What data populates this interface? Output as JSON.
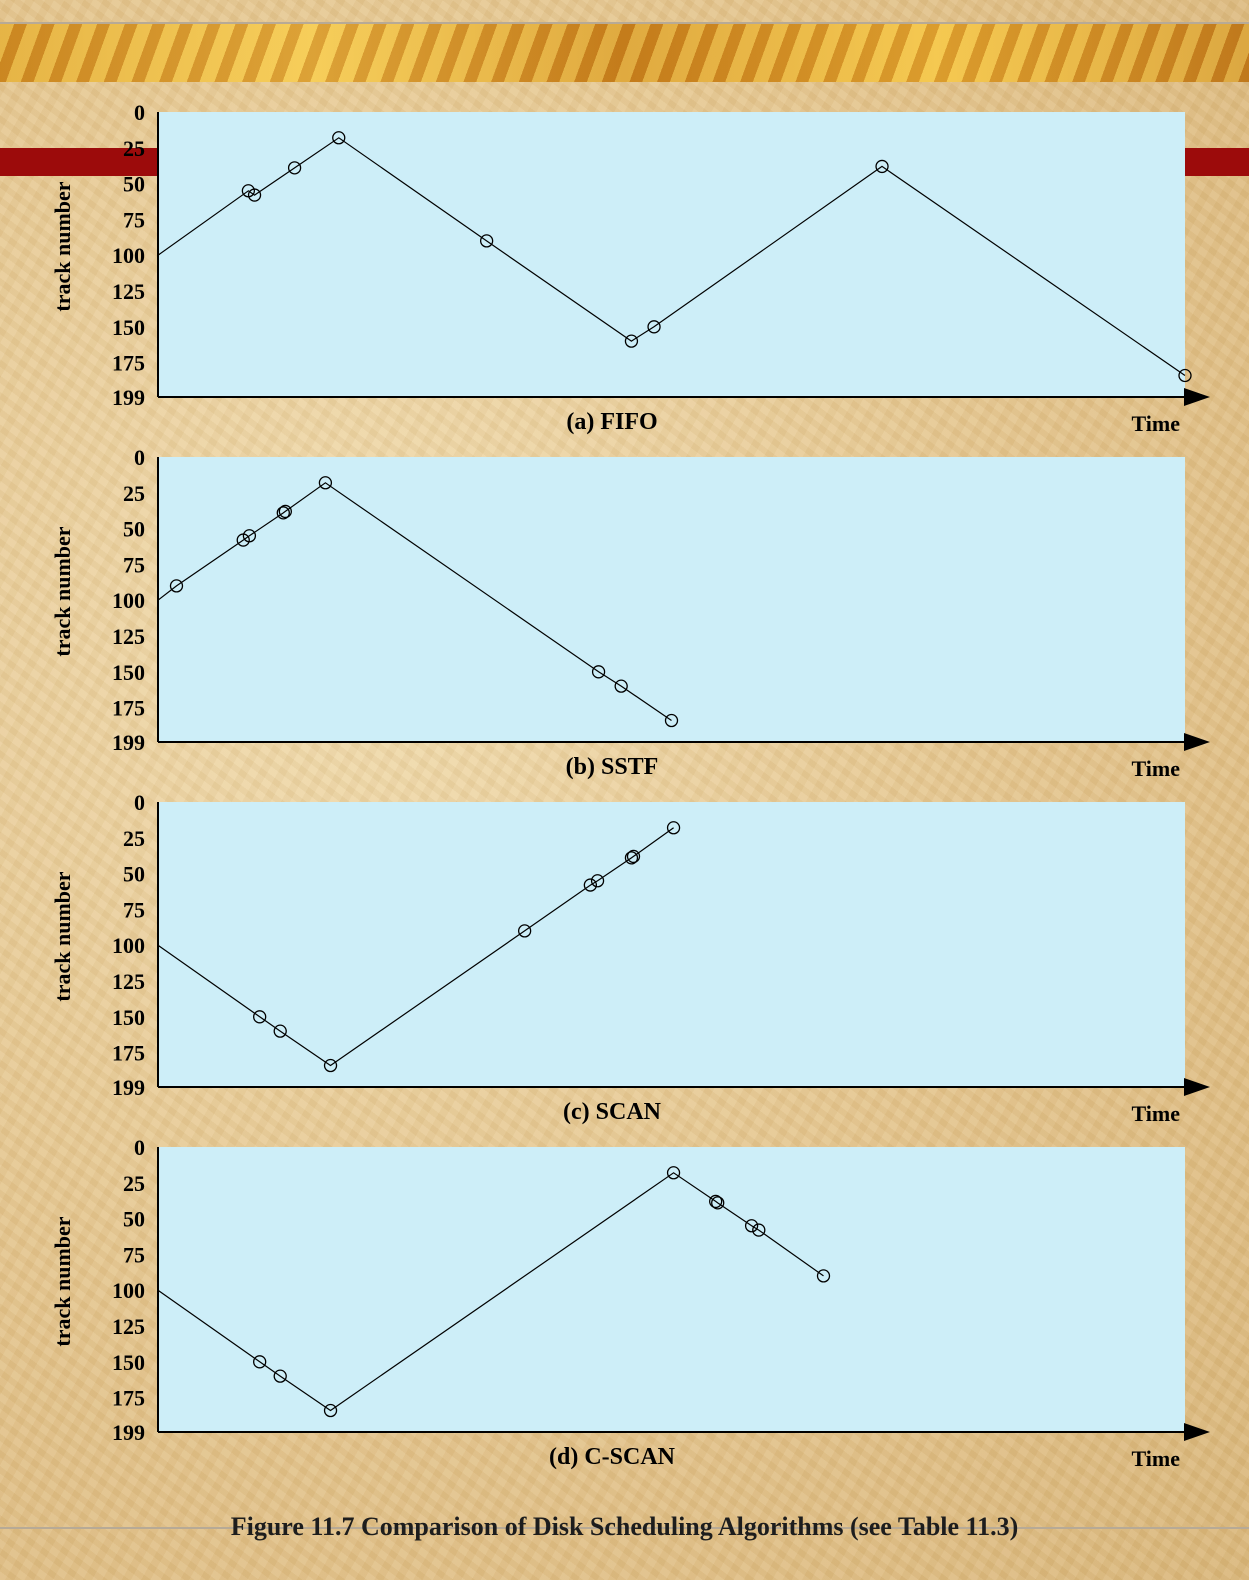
{
  "figure_caption": "Figure 11.7   Comparison of Disk Scheduling Algorithms (see Table 11.3)",
  "colors": {
    "plot_background": "#cdeef8",
    "line": "#000000",
    "accent_red": "#9c0b0b"
  },
  "chart_data": [
    {
      "type": "line",
      "title": "(a) FIFO",
      "xlabel": "Time",
      "ylabel": "track number",
      "y_ticks": [
        "0",
        "25",
        "50",
        "75",
        "100",
        "125",
        "150",
        "175",
        "199"
      ],
      "ylim": [
        0,
        199
      ],
      "y_inverted": true,
      "xlim": [
        0,
        1
      ],
      "start": {
        "x": 0,
        "y": 100
      },
      "points": [
        {
          "x": 0.088,
          "y": 55
        },
        {
          "x": 0.094,
          "y": 58
        },
        {
          "x": 0.133,
          "y": 39
        },
        {
          "x": 0.176,
          "y": 18
        },
        {
          "x": 0.32,
          "y": 90
        },
        {
          "x": 0.461,
          "y": 160
        },
        {
          "x": 0.483,
          "y": 150
        },
        {
          "x": 0.705,
          "y": 38
        },
        {
          "x": 1.0,
          "y": 184
        }
      ]
    },
    {
      "type": "line",
      "title": "(b) SSTF",
      "xlabel": "Time",
      "ylabel": "track number",
      "y_ticks": [
        "0",
        "25",
        "50",
        "75",
        "100",
        "125",
        "150",
        "175",
        "199"
      ],
      "ylim": [
        0,
        199
      ],
      "y_inverted": true,
      "xlim": [
        0,
        1
      ],
      "start": {
        "x": 0,
        "y": 100
      },
      "points": [
        {
          "x": 0.018,
          "y": 90
        },
        {
          "x": 0.083,
          "y": 58
        },
        {
          "x": 0.089,
          "y": 55
        },
        {
          "x": 0.122,
          "y": 39
        },
        {
          "x": 0.124,
          "y": 38
        },
        {
          "x": 0.163,
          "y": 18
        },
        {
          "x": 0.429,
          "y": 150
        },
        {
          "x": 0.451,
          "y": 160
        },
        {
          "x": 0.5,
          "y": 184
        }
      ]
    },
    {
      "type": "line",
      "title": "(c) SCAN",
      "xlabel": "Time",
      "ylabel": "track number",
      "y_ticks": [
        "0",
        "25",
        "50",
        "75",
        "100",
        "125",
        "150",
        "175",
        "199"
      ],
      "ylim": [
        0,
        199
      ],
      "y_inverted": true,
      "xlim": [
        0,
        1
      ],
      "start": {
        "x": 0,
        "y": 100
      },
      "points": [
        {
          "x": 0.099,
          "y": 150
        },
        {
          "x": 0.119,
          "y": 160
        },
        {
          "x": 0.168,
          "y": 184
        },
        {
          "x": 0.357,
          "y": 90
        },
        {
          "x": 0.421,
          "y": 58
        },
        {
          "x": 0.428,
          "y": 55
        },
        {
          "x": 0.461,
          "y": 39
        },
        {
          "x": 0.463,
          "y": 38
        },
        {
          "x": 0.502,
          "y": 18
        }
      ]
    },
    {
      "type": "line",
      "title": "(d) C-SCAN",
      "xlabel": "Time",
      "ylabel": "track number",
      "y_ticks": [
        "0",
        "25",
        "50",
        "75",
        "100",
        "125",
        "150",
        "175",
        "199"
      ],
      "ylim": [
        0,
        199
      ],
      "y_inverted": true,
      "xlim": [
        0,
        1
      ],
      "start": {
        "x": 0,
        "y": 100
      },
      "points": [
        {
          "x": 0.099,
          "y": 150
        },
        {
          "x": 0.119,
          "y": 160
        },
        {
          "x": 0.168,
          "y": 184
        },
        {
          "x": 0.502,
          "y": 18
        },
        {
          "x": 0.543,
          "y": 38
        },
        {
          "x": 0.545,
          "y": 39
        },
        {
          "x": 0.578,
          "y": 55
        },
        {
          "x": 0.585,
          "y": 58
        },
        {
          "x": 0.648,
          "y": 90
        }
      ]
    }
  ]
}
